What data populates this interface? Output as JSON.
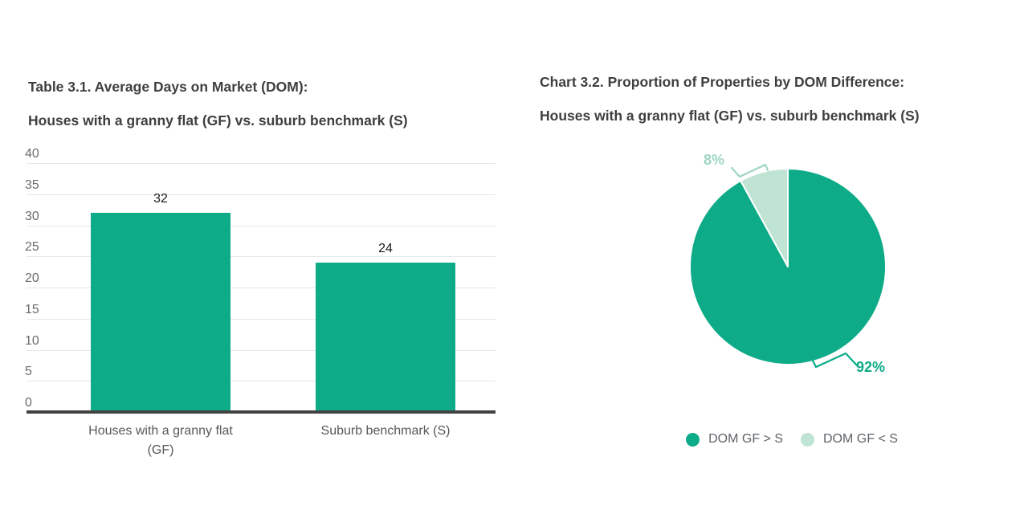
{
  "page": {
    "background": "#ffffff"
  },
  "colors": {
    "teal": "#0dab87",
    "light_green": "#c0e4d4",
    "light_green_label": "#9ed6c2",
    "title_text": "#3f3f3f",
    "tick_text": "#6b6b6b",
    "category_text": "#585858",
    "value_text": "#1a1a1a",
    "legend_text": "#5f6368",
    "gridline": "#e6e6e6",
    "axis_line": "#424242"
  },
  "chart_data": [
    {
      "type": "bar",
      "title_line1": "Table 3.1. Average Days on Market (DOM):",
      "title_line2": "Houses with a granny flat (GF) vs. suburb benchmark (S)",
      "categories": [
        "Houses with a granny flat (GF)",
        "Suburb benchmark (S)"
      ],
      "category_lines": [
        [
          "Houses with a granny flat",
          "(GF)"
        ],
        [
          "Suburb benchmark (S)"
        ]
      ],
      "values": [
        32,
        24
      ],
      "value_labels": [
        "32",
        "24"
      ],
      "xlabel": "",
      "ylabel": "",
      "ylim": [
        0,
        40
      ],
      "yticks": [
        0,
        5,
        10,
        15,
        20,
        25,
        30,
        35,
        40
      ],
      "grid": true,
      "bar_color": "#0dab87"
    },
    {
      "type": "pie",
      "title_line1": "Chart 3.2. Proportion of Properties by DOM Difference:",
      "title_line2": "Houses with a granny flat (GF) vs. suburb benchmark (S)",
      "start_angle_deg": 0,
      "direction": "clockwise",
      "slices": [
        {
          "label": "DOM GF > S",
          "value": 92,
          "pct_label": "92%",
          "color": "#0dab87",
          "label_color": "#0dab87"
        },
        {
          "label": "DOM GF < S",
          "value": 8,
          "pct_label": "8%",
          "color": "#c0e4d4",
          "label_color": "#9ed6c2"
        }
      ],
      "legend_position": "bottom"
    }
  ]
}
